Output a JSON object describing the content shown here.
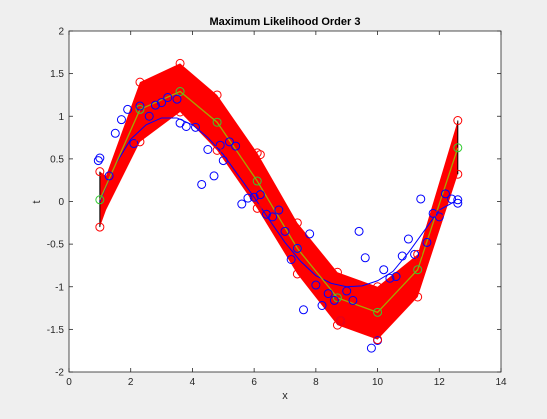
{
  "window": {
    "background": "#efefef"
  },
  "chart_data": {
    "type": "line",
    "title": "Maximum Likelihood Order 3",
    "xlabel": "x",
    "ylabel": "t",
    "xlim": [
      0,
      14
    ],
    "ylim": [
      -2,
      2
    ],
    "xticks": [
      0,
      2,
      4,
      6,
      8,
      10,
      12,
      14
    ],
    "yticks": [
      -2,
      -1.5,
      -1,
      -0.5,
      0,
      0.5,
      1,
      1.5,
      2
    ],
    "xtick_labels": [
      "0",
      "2",
      "4",
      "6",
      "8",
      "10",
      "12",
      "14"
    ],
    "ytick_labels": [
      "-2",
      "-1.5",
      "-1",
      "-0.5",
      "0",
      "0.5",
      "1",
      "1.5",
      "2"
    ],
    "grid": false,
    "colors": {
      "band": "#ff0000",
      "band_edge": "#000000",
      "mean_line": "#a6a600",
      "mean_marker": "#33cc33",
      "samples": "#0000ff",
      "true_curve": "#0000ff",
      "band_markers": "#ff0000"
    },
    "band": {
      "x": [
        1.0,
        1.2,
        2.3,
        3.6,
        4.8,
        6.1,
        7.4,
        8.7,
        10.0,
        11.3,
        12.6
      ],
      "upper": [
        0.35,
        0.3,
        1.4,
        1.62,
        1.25,
        0.57,
        -0.25,
        -0.83,
        -1.0,
        -0.62,
        0.95
      ],
      "lower": [
        -0.3,
        -0.1,
        0.7,
        1.05,
        0.6,
        -0.08,
        -0.85,
        -1.45,
        -1.62,
        -1.12,
        0.32
      ]
    },
    "mean": {
      "x": [
        1.0,
        2.3,
        3.6,
        4.8,
        6.1,
        7.4,
        8.7,
        10.0,
        11.3,
        12.6
      ],
      "y": [
        0.02,
        1.08,
        1.29,
        0.93,
        0.24,
        -0.55,
        -1.13,
        -1.3,
        -0.8,
        0.63
      ]
    },
    "true_curve": {
      "x": [
        1.0,
        1.5,
        2.0,
        2.5,
        3.0,
        3.5,
        4.0,
        4.5,
        5.0,
        5.5,
        6.0,
        6.5,
        7.0,
        7.5,
        8.0,
        8.5,
        9.0,
        9.5,
        10.0,
        10.5,
        11.0,
        11.5,
        12.0,
        12.5
      ],
      "y": [
        0.0,
        0.43,
        0.73,
        0.9,
        0.98,
        0.98,
        0.9,
        0.75,
        0.55,
        0.3,
        0.05,
        -0.22,
        -0.48,
        -0.7,
        -0.87,
        -0.96,
        -1.0,
        -0.99,
        -0.93,
        -0.82,
        -0.6,
        -0.35,
        -0.1,
        0.0
      ]
    },
    "samples": {
      "x": [
        0.95,
        1.0,
        1.3,
        1.5,
        1.7,
        1.9,
        2.1,
        2.3,
        2.6,
        2.8,
        3.0,
        3.2,
        3.5,
        3.6,
        3.8,
        4.1,
        4.3,
        4.5,
        4.7,
        4.9,
        5.0,
        5.2,
        5.4,
        5.6,
        5.8,
        6.0,
        6.2,
        6.4,
        6.6,
        6.8,
        7.0,
        7.2,
        7.4,
        7.6,
        7.8,
        8.0,
        8.2,
        8.4,
        8.6,
        8.8,
        9.0,
        9.2,
        9.4,
        9.6,
        9.8,
        10.0,
        10.2,
        10.4,
        10.6,
        10.8,
        11.0,
        11.2,
        11.4,
        11.6,
        11.8,
        12.0,
        12.2,
        12.4,
        12.6,
        12.6
      ],
      "y": [
        0.48,
        0.51,
        0.3,
        0.8,
        0.96,
        1.08,
        0.68,
        1.12,
        1.0,
        1.13,
        1.16,
        1.22,
        1.2,
        0.92,
        0.88,
        0.87,
        0.2,
        0.61,
        0.3,
        0.66,
        0.48,
        0.7,
        0.65,
        -0.03,
        0.04,
        0.05,
        0.08,
        -0.15,
        -0.18,
        -0.1,
        -0.35,
        -0.68,
        -0.55,
        -1.27,
        -0.38,
        -0.98,
        -1.22,
        -1.08,
        -1.16,
        -1.4,
        -1.05,
        -1.16,
        -0.35,
        -0.66,
        -1.72,
        -1.63,
        -0.8,
        -0.9,
        -0.88,
        -0.64,
        -0.44,
        -0.62,
        0.03,
        -0.48,
        -0.14,
        -0.18,
        0.09,
        0.03,
        0.02,
        -0.02
      ]
    },
    "band_markers": {
      "x": [
        1.0,
        2.3,
        3.6,
        4.8,
        6.1,
        7.4,
        8.7,
        10.0,
        11.3,
        12.6,
        1.0,
        2.3,
        3.6,
        4.8,
        6.1,
        7.4,
        8.7,
        10.0,
        11.3,
        12.6,
        8.8,
        6.2,
        12.0
      ],
      "y": [
        -0.3,
        0.7,
        1.05,
        0.6,
        -0.08,
        -0.85,
        -1.45,
        -1.62,
        -1.12,
        0.32,
        0.35,
        1.4,
        1.62,
        1.25,
        0.57,
        -0.25,
        -0.83,
        -1.0,
        -0.62,
        0.95,
        -1.4,
        0.55,
        -0.15
      ]
    }
  }
}
